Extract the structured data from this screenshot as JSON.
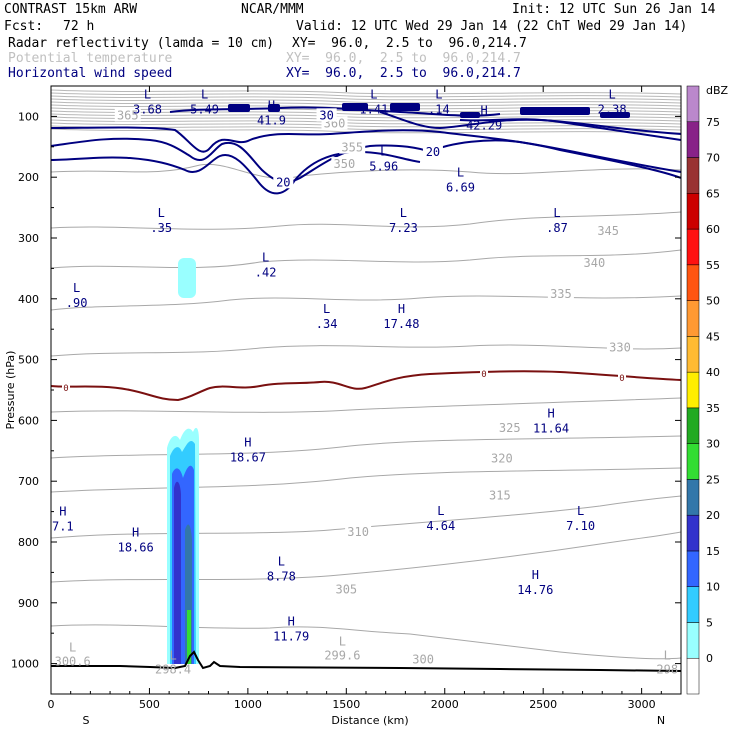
{
  "header": {
    "model": "CONTRAST 15km ARW",
    "org": "NCAR/MMM",
    "init": "Init: 12 UTC Sun 26 Jan 14",
    "fcst_label": "Fcst:",
    "fcst_value": "72 h",
    "valid": "Valid: 12 UTC Wed 29 Jan 14 (22 ChT Wed 29 Jan 14)"
  },
  "fields": [
    {
      "name": "Radar reflectivity (lamda = 10 cm)",
      "xy": "XY=  96.0,  2.5 to  96.0,214.7",
      "color": "#000000"
    },
    {
      "name": "Potential temperature",
      "xy": "XY=  96.0,  2.5 to  96.0,214.7",
      "color": "#c0c0c0"
    },
    {
      "name": "Horizontal wind speed",
      "xy": "XY=  96.0,  2.5 to  96.0,214.7",
      "color": "#000080"
    }
  ],
  "chart_data": {
    "type": "cross-section",
    "xlabel": "Distance (km)",
    "ylabel": "Pressure (hPa)",
    "xlim": [
      0,
      3200
    ],
    "ylim": [
      1050,
      50
    ],
    "xticks": [
      0,
      500,
      1000,
      1500,
      2000,
      2500,
      3000
    ],
    "xtick_labels": [
      "0",
      "500",
      "1000",
      "1500",
      "2000",
      "2500",
      "3000"
    ],
    "yticks": [
      100,
      200,
      300,
      400,
      500,
      600,
      700,
      800,
      900,
      1000
    ],
    "ytick_labels": [
      "100",
      "200",
      "300",
      "400",
      "500",
      "600",
      "700",
      "800",
      "900",
      "1000"
    ],
    "x_end_labels": {
      "left": "S",
      "right": "N"
    },
    "colorbar": {
      "unit": "dBZ",
      "levels": [
        0,
        5,
        10,
        15,
        20,
        25,
        30,
        35,
        40,
        45,
        50,
        55,
        60,
        65,
        70,
        75
      ],
      "colors": [
        "#ffffff",
        "#99ffff",
        "#33ccff",
        "#3366ff",
        "#3333cc",
        "#3377aa",
        "#33dd33",
        "#22aa22",
        "#ffee00",
        "#ffbb33",
        "#ff9933",
        "#ff5511",
        "#ff1111",
        "#cc0000",
        "#993333",
        "#882288",
        "#bb88cc"
      ]
    },
    "theta_contours": [
      {
        "level": "365",
        "x": 390,
        "p": 100
      },
      {
        "level": "360",
        "x": 1440,
        "p": 113
      },
      {
        "level": "355",
        "x": 1530,
        "p": 153
      },
      {
        "level": "350",
        "x": 1490,
        "p": 180
      },
      {
        "level": "345",
        "x": 2830,
        "p": 290
      },
      {
        "level": "340",
        "x": 2760,
        "p": 343
      },
      {
        "level": "335",
        "x": 2590,
        "p": 394
      },
      {
        "level": "330",
        "x": 2890,
        "p": 482
      },
      {
        "level": "325",
        "x": 2330,
        "p": 614
      },
      {
        "level": "320",
        "x": 2290,
        "p": 664
      },
      {
        "level": "315",
        "x": 2280,
        "p": 725
      },
      {
        "level": "310",
        "x": 1560,
        "p": 785
      },
      {
        "level": "305",
        "x": 1500,
        "p": 880
      },
      {
        "level": "300",
        "x": 1890,
        "p": 995
      }
    ],
    "theta_extremes": [
      {
        "type": "L",
        "value": "300.6",
        "x": 110,
        "p": 1000
      },
      {
        "type": "L",
        "value": "298.4",
        "x": 620,
        "p": 1013
      },
      {
        "type": "L",
        "value": "299.6",
        "x": 1480,
        "p": 990
      },
      {
        "type": "L",
        "value": "298",
        "x": 3130,
        "p": 1013
      }
    ],
    "wind_contours": [
      {
        "level": "30",
        "x": 1400,
        "p": 100
      },
      {
        "level": "30",
        "x": 1400,
        "p": 100
      },
      {
        "level": "20",
        "x": 1940,
        "p": 160
      },
      {
        "level": "20",
        "x": 1180,
        "p": 210
      }
    ],
    "wind_extremes": [
      {
        "type": "L",
        "value": "3.68",
        "x": 490,
        "p": 92
      },
      {
        "type": "L",
        "value": "5.49",
        "x": 780,
        "p": 92
      },
      {
        "type": "H",
        "value": "41.9",
        "x": 1120,
        "p": 110
      },
      {
        "type": "L",
        "value": "1.41",
        "x": 1640,
        "p": 92
      },
      {
        "type": "L",
        "value": ".14",
        "x": 1970,
        "p": 92
      },
      {
        "type": "H",
        "value": "42.29",
        "x": 2200,
        "p": 118
      },
      {
        "type": "L",
        "value": "2.38",
        "x": 2850,
        "p": 92
      },
      {
        "type": "L",
        "value": "5.96",
        "x": 1690,
        "p": 186
      },
      {
        "type": "L",
        "value": "6.69",
        "x": 2080,
        "p": 220
      },
      {
        "type": "L",
        "value": ".35",
        "x": 560,
        "p": 287
      },
      {
        "type": "L",
        "value": "7.23",
        "x": 1790,
        "p": 287
      },
      {
        "type": "L",
        "value": ".87",
        "x": 2570,
        "p": 287
      },
      {
        "type": "L",
        "value": ".42",
        "x": 1090,
        "p": 360
      },
      {
        "type": "L",
        "value": ".90",
        "x": 130,
        "p": 410
      },
      {
        "type": "L",
        "value": ".34",
        "x": 1400,
        "p": 445
      },
      {
        "type": "H",
        "value": "17.48",
        "x": 1780,
        "p": 445
      },
      {
        "type": "H",
        "value": "11.64",
        "x": 2540,
        "p": 617
      },
      {
        "type": "H",
        "value": "18.67",
        "x": 1000,
        "p": 664
      },
      {
        "type": "H",
        "value": "7.1",
        "x": 60,
        "p": 778
      },
      {
        "type": "L",
        "value": "4.64",
        "x": 1980,
        "p": 777
      },
      {
        "type": "L",
        "value": "7.10",
        "x": 2690,
        "p": 777
      },
      {
        "type": "H",
        "value": "18.66",
        "x": 430,
        "p": 812
      },
      {
        "type": "L",
        "value": "8.78",
        "x": 1170,
        "p": 860
      },
      {
        "type": "H",
        "value": "14.76",
        "x": 2460,
        "p": 882
      },
      {
        "type": "H",
        "value": "11.79",
        "x": 1220,
        "p": 959
      }
    ],
    "zero_line_label": "0"
  }
}
